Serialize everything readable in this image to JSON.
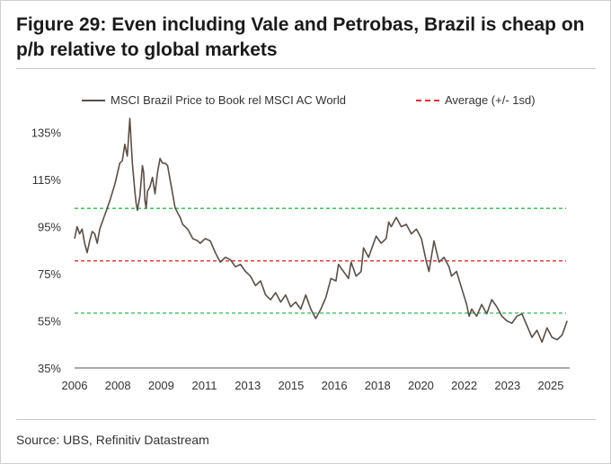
{
  "header": {
    "title": "Figure 29: Even including Vale and Petrobas, Brazil is cheap on p/b relative to global markets"
  },
  "footer": {
    "source": "Source: UBS, Refinitiv Datastream"
  },
  "chart_data": {
    "type": "line",
    "title": "Figure 29: Even including Vale and Petrobas, Brazil is cheap on p/b relative to global markets",
    "xlabel": "",
    "ylabel": "",
    "grid": false,
    "legend_position": "top",
    "x_tick_labels": [
      "2006",
      "2008",
      "2009",
      "2011",
      "2013",
      "2015",
      "2016",
      "2018",
      "2020",
      "2022",
      "2023",
      "2025"
    ],
    "y_tick_labels": [
      "135%",
      "115%",
      "95%",
      "75%",
      "55%",
      "35%"
    ],
    "y_ticks": [
      135,
      115,
      95,
      75,
      55,
      35
    ],
    "ylim": [
      35,
      141
    ],
    "xlim": [
      2006.0,
      2025.7
    ],
    "series": [
      {
        "name": "MSCI Brazil Price to Book rel MSCI AC World",
        "color": "#5a4f47",
        "style": "solid",
        "x": [
          2006.0,
          2006.1,
          2006.2,
          2006.3,
          2006.4,
          2006.5,
          2006.6,
          2006.7,
          2006.8,
          2006.9,
          2007.0,
          2007.2,
          2007.4,
          2007.6,
          2007.8,
          2007.9,
          2008.0,
          2008.1,
          2008.2,
          2008.3,
          2008.4,
          2008.45,
          2008.5,
          2008.6,
          2008.7,
          2008.75,
          2008.8,
          2008.85,
          2008.9,
          2009.0,
          2009.1,
          2009.2,
          2009.3,
          2009.4,
          2009.5,
          2009.6,
          2009.7,
          2009.8,
          2009.9,
          2010.0,
          2010.2,
          2010.3,
          2010.5,
          2010.7,
          2010.9,
          2011.0,
          2011.2,
          2011.4,
          2011.6,
          2011.8,
          2012.0,
          2012.2,
          2012.4,
          2012.6,
          2012.8,
          2013.0,
          2013.2,
          2013.4,
          2013.6,
          2013.8,
          2014.0,
          2014.2,
          2014.4,
          2014.6,
          2014.8,
          2015.0,
          2015.2,
          2015.4,
          2015.5,
          2015.6,
          2015.8,
          2016.0,
          2016.2,
          2016.4,
          2016.5,
          2016.7,
          2016.9,
          2017.0,
          2017.2,
          2017.4,
          2017.5,
          2017.7,
          2017.9,
          2018.0,
          2018.2,
          2018.4,
          2018.5,
          2018.6,
          2018.8,
          2019.0,
          2019.2,
          2019.4,
          2019.6,
          2019.8,
          2020.0,
          2020.1,
          2020.3,
          2020.5,
          2020.7,
          2020.9,
          2021.0,
          2021.2,
          2021.4,
          2021.6,
          2021.7,
          2021.8,
          2022.0,
          2022.2,
          2022.4,
          2022.6,
          2022.8,
          2023.0,
          2023.2,
          2023.4,
          2023.6,
          2023.8,
          2024.0,
          2024.2,
          2024.4,
          2024.6,
          2024.8,
          2025.0,
          2025.2,
          2025.4,
          2025.6
        ],
        "y": [
          90,
          95,
          92,
          94,
          88,
          84,
          89,
          93,
          92,
          88,
          94,
          100,
          106,
          113,
          122,
          123,
          130,
          125,
          141,
          122,
          110,
          105,
          102,
          108,
          121,
          118,
          106,
          103,
          110,
          112,
          116,
          109,
          118,
          124,
          122,
          122,
          121,
          115,
          109,
          103,
          99,
          96,
          94,
          90,
          89,
          88,
          90,
          89,
          84,
          80,
          82,
          81,
          78,
          79,
          76,
          74,
          70,
          72,
          66,
          64,
          67,
          63,
          66,
          61,
          63,
          60,
          66,
          60,
          58,
          56,
          60,
          65,
          73,
          72,
          79,
          76,
          73,
          80,
          74,
          76,
          86,
          82,
          88,
          91,
          88,
          90,
          97,
          95,
          99,
          95,
          96,
          92,
          94,
          90,
          80,
          76,
          89,
          80,
          82,
          78,
          74,
          76,
          69,
          62,
          57,
          60,
          57,
          62,
          58,
          64,
          61,
          57,
          55,
          54,
          57,
          58,
          53,
          48,
          51,
          46,
          52,
          48,
          47,
          49,
          55
        ],
        "style_note": "jagged monthly line"
      },
      {
        "name": "Average (+/- 1sd)",
        "color": "#e03030",
        "style": "dashed",
        "values": [
          80.5
        ]
      },
      {
        "name": "",
        "color": "#2eb84f",
        "style": "dashed",
        "values": [
          102.8,
          58.3
        ]
      }
    ]
  }
}
